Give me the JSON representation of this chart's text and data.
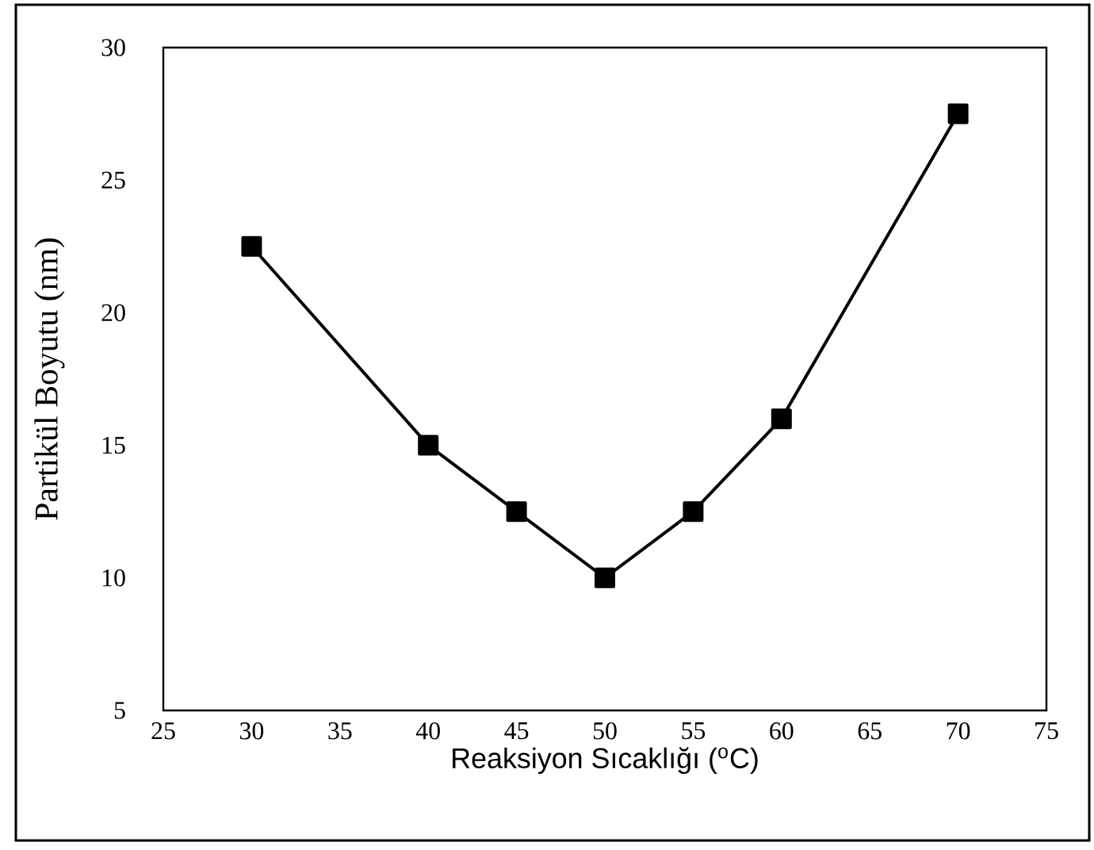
{
  "chart_data": {
    "type": "line",
    "xlabel": "Reaksiyon Sıcaklığı ($^{o}$C)",
    "ylabel": "Partikül Boyutu (nm)",
    "x": [
      30,
      40,
      45,
      50,
      55,
      60,
      70
    ],
    "values": [
      22.5,
      15,
      12.5,
      10,
      12.5,
      16,
      27.5
    ],
    "color": "#000000",
    "marker": "square",
    "line_style": "solid",
    "xlim": [
      25,
      75
    ],
    "xticks": [
      25,
      30,
      35,
      40,
      45,
      50,
      55,
      60,
      65,
      70,
      75
    ],
    "ylim": [
      5,
      30
    ],
    "yticks": [
      5,
      10,
      15,
      20,
      25,
      30
    ]
  }
}
